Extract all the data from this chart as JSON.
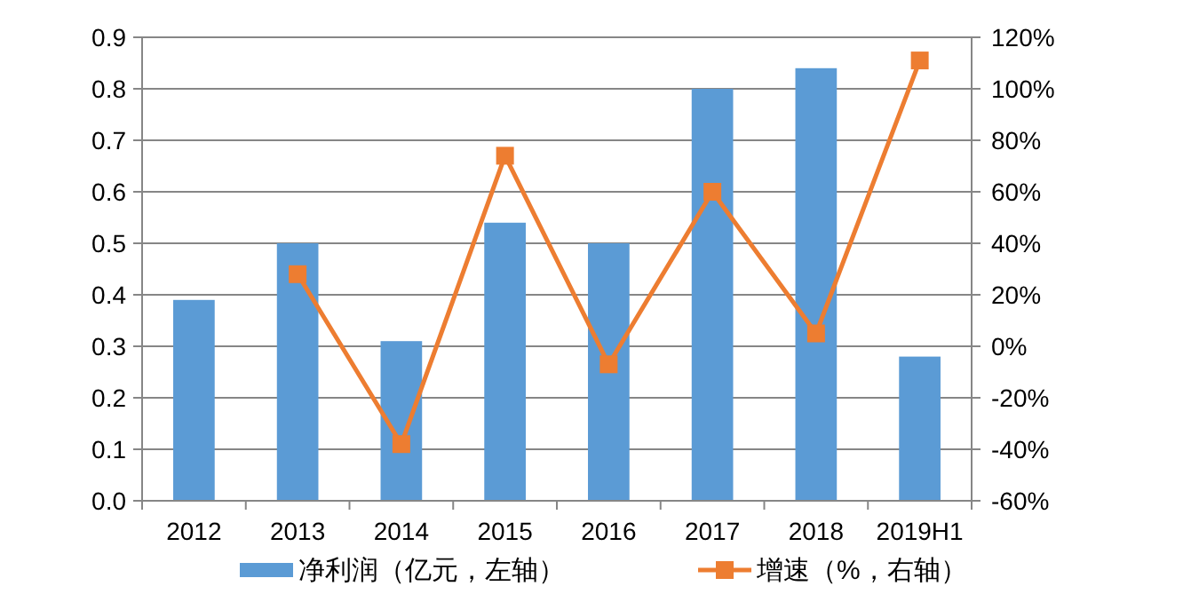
{
  "chart_data": {
    "type": "bar",
    "categories": [
      "2012",
      "2013",
      "2014",
      "2015",
      "2016",
      "2017",
      "2018",
      "2019H1"
    ],
    "series": [
      {
        "name": "净利润（亿元，左轴）",
        "color": "#5b9bd5",
        "values": [
          0.39,
          0.5,
          0.31,
          0.54,
          0.5,
          0.8,
          0.84,
          0.28
        ]
      },
      {
        "name": "增速（%，右轴）",
        "type": "line",
        "axis": "y2",
        "marker": "square",
        "color": "#ed7d31",
        "values": [
          null,
          28,
          -38,
          74,
          -7,
          60,
          5,
          111
        ]
      }
    ],
    "ylim": [
      0,
      0.9
    ],
    "yticks": [
      {
        "value": 0,
        "label": "0.0"
      },
      0.1,
      0.2,
      0.3,
      0.4,
      0.5,
      0.6,
      0.7,
      0.8,
      0.9
    ],
    "y2lim": [
      -60,
      120
    ],
    "y2ticks": [
      {
        "value": -60,
        "label": "-60%"
      },
      {
        "value": -40,
        "label": "-40%"
      },
      {
        "value": -20,
        "label": "-20%"
      },
      {
        "value": 0,
        "label": "0%"
      },
      {
        "value": 20,
        "label": "20%"
      },
      {
        "value": 40,
        "label": "40%"
      },
      {
        "value": 60,
        "label": "60%"
      },
      {
        "value": 80,
        "label": "80%"
      },
      {
        "value": 100,
        "label": "100%"
      },
      {
        "value": 120,
        "label": "120%"
      }
    ],
    "grid": "y",
    "legend": "bottom"
  }
}
